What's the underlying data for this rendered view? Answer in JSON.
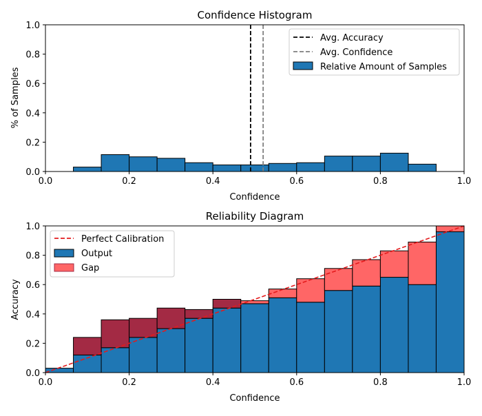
{
  "chart_data": [
    {
      "type": "bar",
      "title": "Confidence Histogram",
      "xlabel": "Confidence",
      "ylabel": "% of Samples",
      "xlim": [
        0,
        1
      ],
      "ylim": [
        0,
        1
      ],
      "xticks": [
        "0.0",
        "0.2",
        "0.4",
        "0.6",
        "0.8",
        "1.0"
      ],
      "yticks": [
        "0.0",
        "0.2",
        "0.4",
        "0.6",
        "0.8",
        "1.0"
      ],
      "bin_edges": [
        0.0,
        0.0667,
        0.1333,
        0.2,
        0.2667,
        0.3333,
        0.4,
        0.4667,
        0.5333,
        0.6,
        0.6667,
        0.7333,
        0.8,
        0.8667,
        0.9333,
        1.0
      ],
      "values": [
        0.0,
        0.03,
        0.115,
        0.1,
        0.09,
        0.06,
        0.045,
        0.045,
        0.055,
        0.06,
        0.105,
        0.105,
        0.125,
        0.05,
        0.0
      ],
      "avg_accuracy": 0.49,
      "avg_confidence": 0.52,
      "legend": [
        "Avg. Accuracy",
        "Avg. Confidence",
        "Relative Amount of Samples"
      ],
      "colors": {
        "bar": "#1f77b4",
        "accuracy_line": "#000000",
        "confidence_line": "#7f7f7f"
      }
    },
    {
      "type": "bar",
      "title": "Reliability Diagram",
      "xlabel": "Confidence",
      "ylabel": "Accuracy",
      "xlim": [
        0,
        1
      ],
      "ylim": [
        0,
        1
      ],
      "xticks": [
        "0.0",
        "0.2",
        "0.4",
        "0.6",
        "0.8",
        "1.0"
      ],
      "yticks": [
        "0.0",
        "0.2",
        "0.4",
        "0.6",
        "0.8",
        "1.0"
      ],
      "bin_edges": [
        0.0,
        0.0667,
        0.1333,
        0.2,
        0.2667,
        0.3333,
        0.4,
        0.4667,
        0.5333,
        0.6,
        0.6667,
        0.7333,
        0.8,
        0.8667,
        0.9333,
        1.0
      ],
      "output": [
        0.03,
        0.12,
        0.17,
        0.24,
        0.3,
        0.37,
        0.44,
        0.47,
        0.51,
        0.48,
        0.56,
        0.59,
        0.65,
        0.6,
        0.96
      ],
      "gap_top": [
        0.03,
        0.24,
        0.36,
        0.37,
        0.44,
        0.43,
        0.5,
        0.49,
        0.57,
        0.64,
        0.71,
        0.77,
        0.83,
        0.89,
        1.0
      ],
      "legend": [
        "Perfect Calibration",
        "Output",
        "Gap"
      ],
      "colors": {
        "output": "#1f77b4",
        "gap_over": "#a32a44",
        "gap_under": "#ff6666",
        "perfect": "#e31a1c"
      }
    }
  ]
}
